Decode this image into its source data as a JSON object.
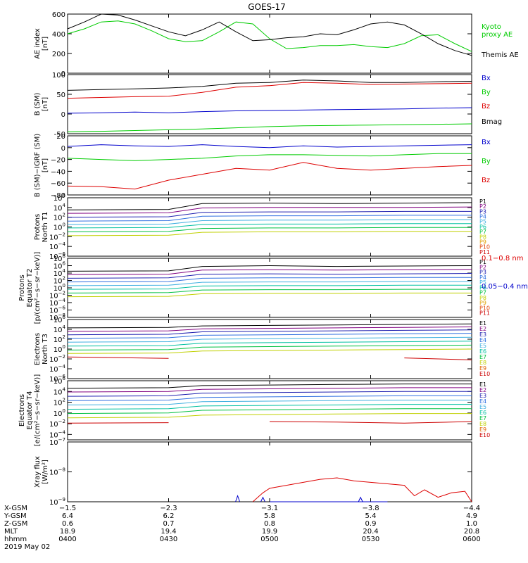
{
  "title": "GOES-17",
  "colors": {
    "black": "#000000",
    "green": "#00cc00",
    "red": "#dd0000",
    "blue": "#0000cc",
    "p": [
      "#000000",
      "#800080",
      "#2020b0",
      "#3070e0",
      "#40b0e0",
      "#00c0a0",
      "#00c040",
      "#c0d000",
      "#e0a000",
      "#e04000",
      "#cc0000"
    ],
    "e": [
      "#000000",
      "#800080",
      "#2020b0",
      "#3070e0",
      "#40b0e0",
      "#00c0a0",
      "#00c040",
      "#c0d000",
      "#e06000",
      "#cc0000"
    ]
  },
  "chart_data": [
    {
      "panel": "ae",
      "type": "line",
      "ylabel": [
        "AE index",
        "[nT]"
      ],
      "ylim": [
        0,
        600
      ],
      "ticks": [
        "600",
        "400",
        "200",
        "0"
      ],
      "tick_values": [
        600,
        400,
        200,
        0
      ],
      "x": [
        0,
        5,
        10,
        15,
        20,
        25,
        30,
        35,
        40,
        45,
        50,
        55,
        60,
        65,
        70,
        75,
        80,
        85,
        90,
        95,
        100,
        105,
        110,
        115,
        120
      ],
      "series": [
        {
          "name": "Kyoto proxy AE",
          "label_lines": [
            "Kyoto",
            "proxy AE"
          ],
          "color": "green",
          "values": [
            400,
            450,
            520,
            530,
            500,
            430,
            350,
            320,
            330,
            420,
            520,
            500,
            350,
            250,
            260,
            280,
            280,
            290,
            270,
            260,
            300,
            380,
            390,
            300,
            220
          ]
        },
        {
          "name": "Themis AE",
          "label_lines": [
            "Themis AE"
          ],
          "color": "black",
          "values": [
            450,
            520,
            600,
            590,
            540,
            480,
            420,
            380,
            440,
            520,
            420,
            330,
            340,
            360,
            370,
            400,
            390,
            440,
            500,
            520,
            490,
            400,
            300,
            230,
            180
          ]
        }
      ]
    },
    {
      "panel": "b",
      "type": "line",
      "ylabel": [
        "B (SM)",
        "[nT]"
      ],
      "ylim": [
        -50,
        100
      ],
      "ticks": [
        "100",
        "50",
        "0",
        "-50"
      ],
      "tick_values": [
        100,
        50,
        0,
        -50
      ],
      "x": [
        0,
        10,
        20,
        30,
        40,
        50,
        60,
        70,
        80,
        90,
        100,
        110,
        120
      ],
      "series": [
        {
          "name": "Bx",
          "color": "blue",
          "values": [
            2,
            3,
            5,
            3,
            6,
            8,
            9,
            10,
            11,
            12,
            13,
            15,
            16
          ]
        },
        {
          "name": "By",
          "color": "green",
          "values": [
            -45,
            -44,
            -42,
            -40,
            -38,
            -35,
            -32,
            -30,
            -29,
            -28,
            -27,
            -26,
            -25
          ]
        },
        {
          "name": "Bz",
          "color": "red",
          "values": [
            40,
            42,
            44,
            45,
            55,
            68,
            72,
            80,
            78,
            75,
            76,
            77,
            78
          ]
        },
        {
          "name": "Bmag",
          "color": "black",
          "values": [
            60,
            62,
            64,
            66,
            70,
            78,
            80,
            86,
            84,
            80,
            80,
            82,
            83
          ]
        }
      ]
    },
    {
      "panel": "db",
      "type": "line",
      "ylabel": [
        "B (SM)−IGRF (SM)",
        "[nT]"
      ],
      "ylim": [
        -80,
        20
      ],
      "ticks": [
        "20",
        "0",
        "−20",
        "−40",
        "−60",
        "−80"
      ],
      "tick_values": [
        20,
        0,
        -20,
        -40,
        -60,
        -80
      ],
      "x": [
        0,
        10,
        20,
        30,
        40,
        50,
        60,
        70,
        80,
        90,
        100,
        110,
        120
      ],
      "series": [
        {
          "name": "Bx",
          "color": "blue",
          "values": [
            2,
            5,
            3,
            2,
            5,
            2,
            0,
            3,
            1,
            2,
            3,
            4,
            5
          ]
        },
        {
          "name": "By",
          "color": "green",
          "values": [
            -18,
            -20,
            -22,
            -20,
            -18,
            -14,
            -12,
            -12,
            -13,
            -14,
            -12,
            -10,
            -10
          ]
        },
        {
          "name": "Bz",
          "color": "red",
          "values": [
            -65,
            -66,
            -70,
            -55,
            -45,
            -35,
            -38,
            -25,
            -35,
            -38,
            -35,
            -32,
            -30
          ]
        }
      ]
    },
    {
      "panel": "protons_t1",
      "type": "line",
      "log": true,
      "ylabel": [
        "Protons",
        "North T1"
      ],
      "ylim": [
        -6,
        6
      ],
      "tick_exp": [
        "6",
        "4",
        "2",
        "0",
        "−2",
        "−4",
        "−6"
      ],
      "tick_values": [
        6,
        4,
        2,
        0,
        -2,
        -4,
        -6
      ],
      "x": [
        0,
        30,
        40,
        60,
        80,
        100,
        120
      ],
      "series_labels": [
        "P1",
        "P2",
        "P3",
        "P4",
        "P5",
        "P6",
        "P7",
        "P8",
        "P9",
        "P10",
        "P11"
      ],
      "series_values": [
        [
          3.5,
          3.6,
          4.8,
          4.9,
          4.8,
          4.9,
          5.0
        ],
        [
          2.8,
          2.9,
          3.9,
          4.0,
          4.0,
          4.0,
          4.1
        ],
        [
          2.0,
          2.1,
          3.0,
          3.1,
          3.1,
          3.2,
          3.2
        ],
        [
          1.2,
          1.3,
          2.2,
          2.3,
          2.3,
          2.4,
          2.4
        ],
        [
          0.5,
          0.6,
          1.3,
          1.4,
          1.4,
          1.5,
          1.5
        ],
        [
          -0.2,
          -0.1,
          0.5,
          0.6,
          0.6,
          0.7,
          0.7
        ],
        [
          -1.0,
          -0.9,
          -0.3,
          -0.2,
          -0.2,
          -0.1,
          -0.1
        ],
        [
          -1.8,
          -1.7,
          -1.1,
          -1.0,
          -1.0,
          -0.9,
          -0.9
        ],
        [
          -3.2,
          null,
          null,
          null,
          null,
          null,
          null
        ],
        [
          null,
          null,
          null,
          null,
          null,
          null,
          null
        ],
        [
          null,
          null,
          null,
          null,
          null,
          null,
          null
        ]
      ]
    },
    {
      "panel": "protons_t2",
      "type": "line",
      "log": true,
      "ylabel": [
        "Protons",
        "Equator T2",
        "[p/(cm²−s−sr−keV)]"
      ],
      "ylim": [
        -8,
        8
      ],
      "tick_exp": [
        "8",
        "6",
        "4",
        "2",
        "0",
        "−2",
        "−4",
        "−6",
        "−8"
      ],
      "tick_values": [
        8,
        6,
        4,
        2,
        0,
        -2,
        -4,
        -6,
        -8
      ],
      "x": [
        0,
        30,
        40,
        60,
        80,
        100,
        120
      ],
      "series_labels": [
        "P1",
        "P2",
        "P3",
        "P4",
        "P5",
        "P6",
        "P7",
        "P8",
        "P9",
        "P10",
        "P11"
      ],
      "series_values": [
        [
          4.5,
          4.6,
          5.8,
          6.0,
          5.8,
          5.9,
          6.0
        ],
        [
          3.6,
          3.7,
          4.8,
          4.9,
          4.8,
          4.9,
          5.0
        ],
        [
          2.6,
          2.7,
          3.7,
          3.8,
          3.7,
          3.8,
          3.9
        ],
        [
          1.6,
          1.7,
          2.6,
          2.7,
          2.7,
          2.8,
          2.8
        ],
        [
          0.6,
          0.7,
          1.5,
          1.6,
          1.6,
          1.7,
          1.7
        ],
        [
          -0.4,
          -0.3,
          0.5,
          0.6,
          0.6,
          0.7,
          0.7
        ],
        [
          -1.4,
          -1.3,
          -0.6,
          -0.5,
          -0.5,
          -0.4,
          -0.4
        ],
        [
          -2.4,
          -2.3,
          -1.6,
          -1.5,
          -1.5,
          -1.4,
          -1.4
        ],
        [
          -3.6,
          null,
          null,
          null,
          null,
          null,
          null
        ],
        [
          null,
          null,
          null,
          null,
          null,
          null,
          null
        ],
        [
          null,
          null,
          null,
          null,
          null,
          null,
          null
        ]
      ]
    },
    {
      "panel": "electrons_t3",
      "type": "line",
      "log": true,
      "ylabel": [
        "Electrons",
        "North T3"
      ],
      "ylim": [
        -6,
        6
      ],
      "tick_exp": [
        "6",
        "4",
        "2",
        "0",
        "−2",
        "−4",
        "−6"
      ],
      "tick_values": [
        6,
        4,
        2,
        0,
        -2,
        -4,
        -6
      ],
      "x": [
        0,
        30,
        40,
        60,
        80,
        100,
        120
      ],
      "series_labels": [
        "E1",
        "E2",
        "E3",
        "E4",
        "E5",
        "E6",
        "E7",
        "E8",
        "E9",
        "E10"
      ],
      "series_values": [
        [
          4.3,
          4.4,
          4.7,
          4.8,
          4.9,
          5.0,
          5.1
        ],
        [
          3.6,
          3.7,
          4.1,
          4.2,
          4.3,
          4.4,
          4.5
        ],
        [
          2.9,
          3.0,
          3.5,
          3.6,
          3.7,
          3.8,
          3.9
        ],
        [
          2.2,
          2.3,
          2.8,
          2.9,
          3.0,
          3.1,
          3.2
        ],
        [
          1.4,
          1.5,
          2.0,
          2.1,
          2.2,
          2.3,
          2.4
        ],
        [
          0.6,
          0.7,
          1.2,
          1.3,
          1.4,
          1.5,
          1.6
        ],
        [
          -0.2,
          -0.1,
          0.4,
          0.5,
          0.6,
          0.7,
          0.8
        ],
        [
          -0.9,
          -0.8,
          -0.4,
          -0.3,
          -0.2,
          -0.1,
          0.0
        ],
        [
          null,
          null,
          null,
          null,
          null,
          null,
          null
        ],
        [
          -1.6,
          -1.9,
          null,
          -2.4,
          null,
          -1.8,
          -2.2
        ]
      ]
    },
    {
      "panel": "electrons_t4",
      "type": "line",
      "log": true,
      "ylabel": [
        "Electrons",
        "Equator T4",
        "[e/(cm²−s−sr−keV)]"
      ],
      "ylim": [
        -5,
        6
      ],
      "tick_exp": [
        "6",
        "4",
        "2",
        "0",
        "−2",
        "−4"
      ],
      "tick_values": [
        6,
        4,
        2,
        0,
        -2,
        -4
      ],
      "x": [
        0,
        30,
        40,
        60,
        80,
        100,
        120
      ],
      "series_labels": [
        "E1",
        "E2",
        "E3",
        "E4",
        "E5",
        "E6",
        "E7",
        "E8",
        "E9",
        "E10"
      ],
      "series_values": [
        [
          4.6,
          4.7,
          5.1,
          5.2,
          5.3,
          5.4,
          5.4
        ],
        [
          3.9,
          4.0,
          4.4,
          4.5,
          4.6,
          4.7,
          4.7
        ],
        [
          3.1,
          3.2,
          3.7,
          3.8,
          3.9,
          4.0,
          4.0
        ],
        [
          2.3,
          2.4,
          2.9,
          3.0,
          3.1,
          3.2,
          3.2
        ],
        [
          1.5,
          1.6,
          2.1,
          2.2,
          2.3,
          2.4,
          2.4
        ],
        [
          0.7,
          0.8,
          1.3,
          1.4,
          1.5,
          1.6,
          1.6
        ],
        [
          -0.1,
          0.0,
          0.5,
          0.6,
          0.7,
          0.8,
          0.8
        ],
        [
          -0.9,
          -0.8,
          -0.4,
          -0.3,
          -0.2,
          -0.1,
          -0.1
        ],
        [
          null,
          null,
          null,
          null,
          null,
          null,
          null
        ],
        [
          -1.9,
          -1.8,
          null,
          -1.6,
          -1.7,
          -1.9,
          -1.6
        ]
      ]
    },
    {
      "panel": "xray",
      "type": "line",
      "log": true,
      "ylabel": [
        "Xray flux",
        "[W/m²]"
      ],
      "ylim": [
        -9,
        -7
      ],
      "tick_exp": [
        "−7",
        "−8",
        "−9"
      ],
      "tick_values": [
        -7,
        -8,
        -9
      ],
      "x": [
        0,
        50,
        55,
        58,
        60,
        65,
        70,
        75,
        80,
        85,
        90,
        95,
        100,
        103,
        106,
        110,
        114,
        118,
        120
      ],
      "series": [
        {
          "name": "0.1−0.8 nm",
          "color": "red",
          "values": [
            null,
            null,
            -9.0,
            -8.7,
            -8.55,
            -8.45,
            -8.35,
            -8.25,
            -8.2,
            -8.3,
            -8.35,
            -8.4,
            -8.45,
            -8.8,
            -8.6,
            -8.85,
            -8.7,
            -8.65,
            -9.0
          ]
        },
        {
          "name": "0.05−0.4 nm",
          "color": "blue",
          "values": [
            null,
            null,
            null,
            null,
            -9.0,
            -9.0,
            -9.0,
            -9.0,
            -9.0,
            -9.0,
            -9.0,
            -9.0,
            null,
            null,
            null,
            null,
            null,
            null,
            null
          ]
        }
      ],
      "spikes": [
        {
          "x": 50.5,
          "y": -8.8
        },
        {
          "x": 58,
          "y": -8.85
        },
        {
          "x": 87,
          "y": -8.85
        }
      ]
    }
  ],
  "x_axis": {
    "xlim": [
      0,
      120
    ],
    "tick_x": [
      0,
      30,
      60,
      90,
      120
    ],
    "rows": [
      {
        "label": "X-GSM",
        "values": [
          "−1.5",
          "−2.3",
          "−3.1",
          "−3.8",
          "−4.4"
        ]
      },
      {
        "label": "Y-GSM",
        "values": [
          "6.4",
          "6.2",
          "5.8",
          "5.4",
          "4.9"
        ]
      },
      {
        "label": "Z-GSM",
        "values": [
          "0.6",
          "0.7",
          "0.8",
          "0.9",
          "1.0"
        ]
      },
      {
        "label": "MLT",
        "values": [
          "18.9",
          "19.4",
          "19.9",
          "20.4",
          "20.8"
        ]
      },
      {
        "label": "hhmm",
        "values": [
          "0400",
          "0430",
          "0500",
          "0530",
          "0600"
        ]
      }
    ],
    "date": "2019 May 02"
  }
}
